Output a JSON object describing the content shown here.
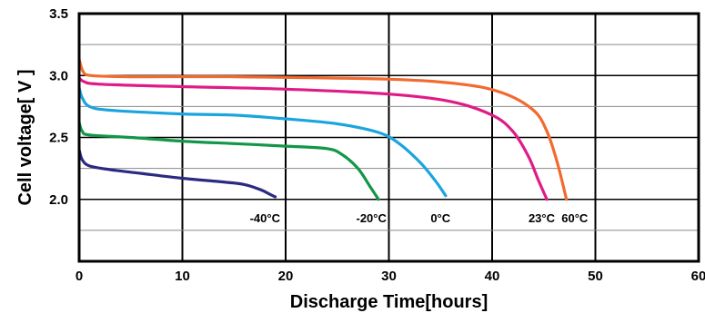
{
  "chart_data": {
    "type": "line",
    "title": "",
    "xlabel": "Discharge Time[hours]",
    "ylabel": "Cell voltage[ V ]",
    "xlim": [
      0,
      60
    ],
    "ylim": [
      1.5,
      3.5
    ],
    "xticks": [
      {
        "value": 0,
        "label": "0"
      },
      {
        "value": 10,
        "label": "10"
      },
      {
        "value": 20,
        "label": "20"
      },
      {
        "value": 30,
        "label": "30"
      },
      {
        "value": 40,
        "label": "40"
      },
      {
        "value": 50,
        "label": "50"
      },
      {
        "value": 60,
        "label": "60"
      }
    ],
    "yticks": [
      {
        "value": 3.5,
        "label": "3.5"
      },
      {
        "value": 3.0,
        "label": "3.0"
      },
      {
        "value": 2.5,
        "label": "2.5"
      },
      {
        "value": 2.0,
        "label": "2.0"
      }
    ],
    "grid": {
      "vertical": true,
      "horizontal": true
    },
    "series": [
      {
        "name": "-40°C",
        "color": "#2b2a83",
        "points": [
          [
            0,
            2.4
          ],
          [
            0.3,
            2.32
          ],
          [
            1,
            2.27
          ],
          [
            3,
            2.24
          ],
          [
            6,
            2.21
          ],
          [
            10,
            2.17
          ],
          [
            14,
            2.14
          ],
          [
            16,
            2.12
          ],
          [
            17.5,
            2.08
          ],
          [
            18.5,
            2.04
          ],
          [
            19,
            2.02
          ]
        ],
        "label_at": [
          18,
          1.85
        ]
      },
      {
        "name": "-20°C",
        "color": "#129648",
        "points": [
          [
            0,
            2.62
          ],
          [
            0.3,
            2.55
          ],
          [
            1,
            2.52
          ],
          [
            5,
            2.5
          ],
          [
            10,
            2.47
          ],
          [
            15,
            2.45
          ],
          [
            20,
            2.43
          ],
          [
            24,
            2.41
          ],
          [
            25.5,
            2.36
          ],
          [
            27,
            2.25
          ],
          [
            28.2,
            2.1
          ],
          [
            29,
            2.0
          ]
        ],
        "label_at": [
          28.3,
          1.85
        ]
      },
      {
        "name": "0°C",
        "color": "#1ba4dd",
        "points": [
          [
            0,
            2.9
          ],
          [
            0.3,
            2.82
          ],
          [
            1,
            2.75
          ],
          [
            3,
            2.72
          ],
          [
            10,
            2.69
          ],
          [
            15,
            2.68
          ],
          [
            20,
            2.65
          ],
          [
            25,
            2.61
          ],
          [
            29,
            2.54
          ],
          [
            31,
            2.45
          ],
          [
            33,
            2.3
          ],
          [
            34.5,
            2.15
          ],
          [
            35.5,
            2.03
          ]
        ],
        "label_at": [
          35,
          1.85
        ]
      },
      {
        "name": "23°C",
        "color": "#e01b86",
        "points": [
          [
            0,
            2.98
          ],
          [
            0.5,
            2.95
          ],
          [
            2,
            2.93
          ],
          [
            10,
            2.91
          ],
          [
            20,
            2.89
          ],
          [
            30,
            2.85
          ],
          [
            36,
            2.79
          ],
          [
            40,
            2.68
          ],
          [
            42,
            2.55
          ],
          [
            43.5,
            2.35
          ],
          [
            44.5,
            2.15
          ],
          [
            45.3,
            2.0
          ]
        ],
        "label_at": [
          44.8,
          1.85
        ]
      },
      {
        "name": "60°C",
        "color": "#f26a2f",
        "points": [
          [
            0,
            3.13
          ],
          [
            0.4,
            3.03
          ],
          [
            1.2,
            3.0
          ],
          [
            5,
            2.99
          ],
          [
            15,
            2.99
          ],
          [
            30,
            2.97
          ],
          [
            37,
            2.93
          ],
          [
            41,
            2.86
          ],
          [
            44,
            2.72
          ],
          [
            45.3,
            2.55
          ],
          [
            46.3,
            2.3
          ],
          [
            47.2,
            2.0
          ]
        ],
        "label_at": [
          48,
          1.85
        ]
      }
    ]
  }
}
